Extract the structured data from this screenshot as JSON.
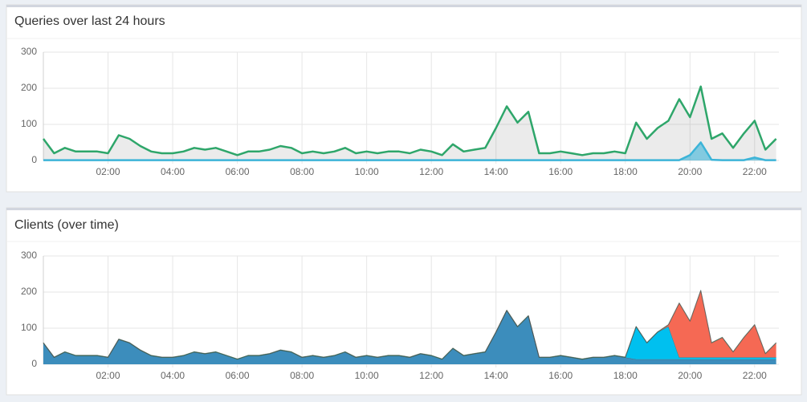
{
  "chart_data": [
    {
      "type": "area",
      "stacked": false,
      "title": "Queries over last 24 hours",
      "x": [
        "00:00",
        "00:20",
        "00:40",
        "01:00",
        "01:20",
        "01:40",
        "02:00",
        "02:20",
        "02:40",
        "03:00",
        "03:20",
        "03:40",
        "04:00",
        "04:20",
        "04:40",
        "05:00",
        "05:20",
        "05:40",
        "06:00",
        "06:20",
        "06:40",
        "07:00",
        "07:20",
        "07:40",
        "08:00",
        "08:20",
        "08:40",
        "09:00",
        "09:20",
        "09:40",
        "10:00",
        "10:20",
        "10:40",
        "11:00",
        "11:20",
        "11:40",
        "12:00",
        "12:20",
        "12:40",
        "13:00",
        "13:20",
        "13:40",
        "14:00",
        "14:20",
        "14:40",
        "15:00",
        "15:20",
        "15:40",
        "16:00",
        "16:20",
        "16:40",
        "17:00",
        "17:20",
        "17:40",
        "18:00",
        "18:20",
        "18:40",
        "19:00",
        "19:20",
        "19:40",
        "20:00",
        "20:20",
        "20:40",
        "21:00",
        "21:20",
        "21:40",
        "22:00",
        "22:20",
        "22:40"
      ],
      "xlim": [
        "00:00",
        "22:45"
      ],
      "xticks": [
        "02:00",
        "04:00",
        "06:00",
        "08:00",
        "10:00",
        "12:00",
        "14:00",
        "16:00",
        "18:00",
        "20:00",
        "22:00"
      ],
      "ylim": [
        0,
        300
      ],
      "yticks": [
        0,
        100,
        200,
        300
      ],
      "grid": true,
      "series": [
        {
          "color": "#2ea66a",
          "fill": "rgba(0,0,0,0.08)",
          "values": [
            60,
            20,
            35,
            25,
            25,
            25,
            20,
            70,
            60,
            40,
            25,
            20,
            20,
            25,
            35,
            30,
            35,
            25,
            15,
            25,
            25,
            30,
            40,
            35,
            20,
            25,
            20,
            25,
            35,
            20,
            25,
            20,
            25,
            25,
            20,
            30,
            25,
            15,
            45,
            25,
            30,
            35,
            90,
            150,
            105,
            135,
            20,
            20,
            25,
            20,
            15,
            20,
            20,
            25,
            20,
            105,
            60,
            90,
            110,
            170,
            120,
            205,
            60,
            75,
            35,
            75,
            110,
            30,
            60
          ]
        },
        {
          "color": "#3cb4d8",
          "fill": "rgba(60,180,216,0.6)",
          "values": [
            1,
            1,
            1,
            1,
            1,
            1,
            1,
            1,
            1,
            1,
            1,
            1,
            1,
            1,
            1,
            1,
            1,
            1,
            1,
            1,
            1,
            1,
            1,
            1,
            1,
            1,
            1,
            1,
            1,
            1,
            1,
            1,
            1,
            1,
            1,
            1,
            1,
            1,
            1,
            1,
            1,
            1,
            1,
            1,
            1,
            1,
            1,
            1,
            1,
            1,
            1,
            1,
            1,
            1,
            1,
            1,
            1,
            1,
            1,
            1,
            15,
            50,
            2,
            1,
            1,
            1,
            8,
            1,
            1
          ]
        }
      ]
    },
    {
      "type": "area",
      "stacked": true,
      "title": "Clients (over time)",
      "x": [
        "00:00",
        "00:20",
        "00:40",
        "01:00",
        "01:20",
        "01:40",
        "02:00",
        "02:20",
        "02:40",
        "03:00",
        "03:20",
        "03:40",
        "04:00",
        "04:20",
        "04:40",
        "05:00",
        "05:20",
        "05:40",
        "06:00",
        "06:20",
        "06:40",
        "07:00",
        "07:20",
        "07:40",
        "08:00",
        "08:20",
        "08:40",
        "09:00",
        "09:20",
        "09:40",
        "10:00",
        "10:20",
        "10:40",
        "11:00",
        "11:20",
        "11:40",
        "12:00",
        "12:20",
        "12:40",
        "13:00",
        "13:20",
        "13:40",
        "14:00",
        "14:20",
        "14:40",
        "15:00",
        "15:20",
        "15:40",
        "16:00",
        "16:20",
        "16:40",
        "17:00",
        "17:20",
        "17:40",
        "18:00",
        "18:20",
        "18:40",
        "19:00",
        "19:20",
        "19:40",
        "20:00",
        "20:20",
        "20:40",
        "21:00",
        "21:20",
        "21:40",
        "22:00",
        "22:20",
        "22:40"
      ],
      "xlim": [
        "00:00",
        "22:45"
      ],
      "xticks": [
        "02:00",
        "04:00",
        "06:00",
        "08:00",
        "10:00",
        "12:00",
        "14:00",
        "16:00",
        "18:00",
        "20:00",
        "22:00"
      ],
      "ylim": [
        0,
        300
      ],
      "yticks": [
        0,
        100,
        200,
        300
      ],
      "grid": true,
      "series": [
        {
          "color": "#3c8dbc",
          "values": [
            59,
            19,
            34,
            24,
            24,
            24,
            19,
            69,
            59,
            39,
            24,
            19,
            19,
            24,
            34,
            29,
            34,
            24,
            14,
            24,
            24,
            29,
            39,
            34,
            19,
            24,
            19,
            24,
            34,
            19,
            24,
            19,
            24,
            24,
            19,
            29,
            24,
            14,
            44,
            24,
            29,
            34,
            89,
            149,
            104,
            134,
            19,
            19,
            24,
            19,
            14,
            19,
            19,
            24,
            19,
            14,
            14,
            14,
            14,
            14,
            14,
            14,
            14,
            14,
            14,
            14,
            14,
            14,
            14
          ]
        },
        {
          "color": "#00c0ef",
          "values": [
            0,
            0,
            0,
            0,
            0,
            0,
            0,
            0,
            0,
            0,
            0,
            0,
            0,
            0,
            0,
            0,
            0,
            0,
            0,
            0,
            0,
            0,
            0,
            0,
            0,
            0,
            0,
            0,
            0,
            0,
            0,
            0,
            0,
            0,
            0,
            0,
            0,
            0,
            0,
            0,
            0,
            0,
            0,
            0,
            0,
            0,
            0,
            0,
            0,
            0,
            0,
            0,
            0,
            0,
            0,
            90,
            45,
            75,
            91,
            5,
            5,
            5,
            5,
            5,
            5,
            5,
            5,
            5,
            5
          ]
        },
        {
          "color": "#f56954",
          "values": [
            0,
            0,
            0,
            0,
            0,
            0,
            0,
            0,
            0,
            0,
            0,
            0,
            0,
            0,
            0,
            0,
            0,
            0,
            0,
            0,
            0,
            0,
            0,
            0,
            0,
            0,
            0,
            0,
            0,
            0,
            0,
            0,
            0,
            0,
            0,
            0,
            0,
            0,
            0,
            0,
            0,
            0,
            0,
            0,
            0,
            0,
            0,
            0,
            0,
            0,
            0,
            0,
            0,
            0,
            0,
            0,
            0,
            0,
            4,
            150,
            100,
            185,
            40,
            55,
            15,
            55,
            90,
            10,
            40
          ]
        },
        {
          "color": "#00a65a",
          "values": [
            1,
            1,
            1,
            1,
            1,
            1,
            1,
            1,
            1,
            1,
            1,
            1,
            1,
            1,
            1,
            1,
            1,
            1,
            1,
            1,
            1,
            1,
            1,
            1,
            1,
            1,
            1,
            1,
            1,
            1,
            1,
            1,
            1,
            1,
            1,
            1,
            1,
            1,
            1,
            1,
            1,
            1,
            1,
            1,
            1,
            1,
            1,
            1,
            1,
            1,
            1,
            1,
            1,
            1,
            1,
            1,
            1,
            1,
            1,
            1,
            1,
            1,
            1,
            1,
            1,
            1,
            1,
            1,
            1
          ]
        }
      ]
    }
  ]
}
